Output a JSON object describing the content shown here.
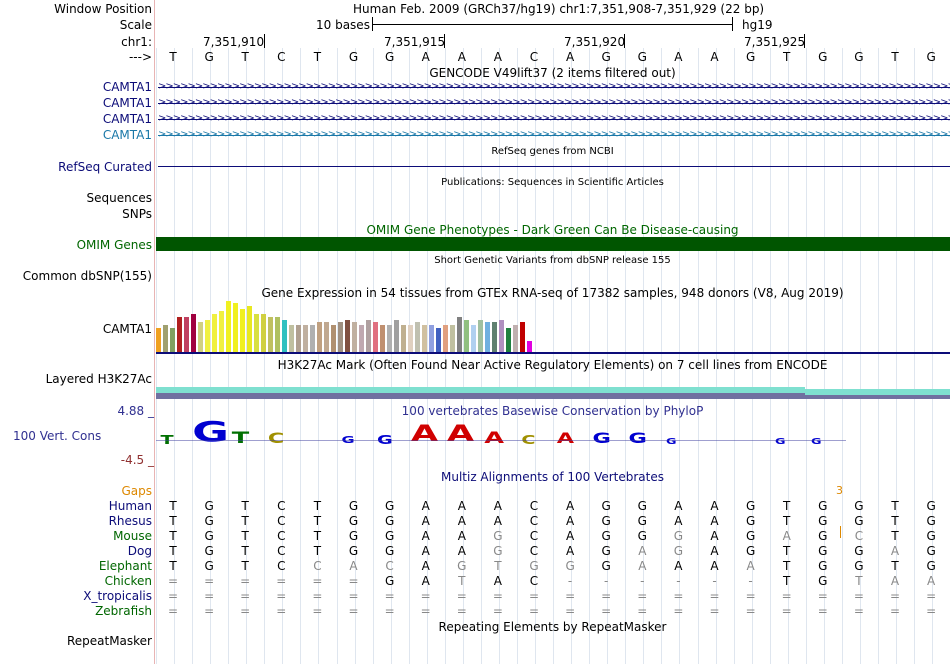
{
  "labels": {
    "window_position": "Window Position",
    "scale": "Scale",
    "chr": "chr1:",
    "arrow": "--->",
    "camta1": "CAMTA1",
    "refseq": "RefSeq Curated",
    "sequences": "Sequences",
    "snps": "SNPs",
    "omim": "OMIM Genes",
    "common_snp": "Common dbSNP(155)",
    "gtex_gene": "CAMTA1",
    "h3k27": "Layered H3K27Ac",
    "cons_top": "4.88 _",
    "cons_name": "100 Vert. Cons",
    "cons_bottom": "-4.5 _",
    "gaps": "Gaps",
    "repeat": "RepeatMasker"
  },
  "header": {
    "position": "Human Feb. 2009 (GRCh37/hg19)   chr1:7,351,908-7,351,929 (22 bp)",
    "scale_text": "10 bases",
    "assembly": "hg19",
    "ticks": [
      "7,351,910",
      "7,351,915",
      "7,351,920",
      "7,351,925"
    ]
  },
  "reference_bases": [
    "T",
    "G",
    "T",
    "C",
    "T",
    "G",
    "G",
    "A",
    "A",
    "A",
    "C",
    "A",
    "G",
    "G",
    "A",
    "A",
    "G",
    "T",
    "G",
    "G",
    "T",
    "G"
  ],
  "tracks": {
    "gencode": "GENCODE V49lift37 (2 items filtered out)",
    "refseq": "RefSeq genes from NCBI",
    "publications": "Publications: Sequences in Scientific Articles",
    "omim": "OMIM Gene Phenotypes - Dark Green Can Be Disease-causing",
    "dbsnp": "Short Genetic Variants from dbSNP release 155",
    "gtex": "Gene Expression in 54 tissues from GTEx RNA-seq of 17382 samples, 948 donors (V8, Aug 2019)",
    "h3k27": "H3K27Ac Mark (Often Found Near Active Regulatory Elements) on 7 cell lines from ENCODE",
    "phylop": "100 vertebrates Basewise Conservation by PhyloP",
    "multiz": "Multiz Alignments of 100 Vertebrates",
    "repeat": "Repeating Elements by RepeatMasker"
  },
  "colors": {
    "gene": "#0c0c78",
    "omim": "#005500",
    "omim_label": "#006600",
    "gaps": "#dd8800",
    "separator": "#e8b4b4",
    "h3k27_top": "#7fe0d0",
    "h3k27_bottom": "#7070a0"
  },
  "gaps_value": "3",
  "species": [
    {
      "name": "Human",
      "color": "#0c0c78",
      "bases": [
        "T",
        "G",
        "T",
        "C",
        "T",
        "G",
        "G",
        "A",
        "A",
        "A",
        "C",
        "A",
        "G",
        "G",
        "A",
        "A",
        "G",
        "T",
        "G",
        "G",
        "T",
        "G"
      ]
    },
    {
      "name": "Rhesus",
      "color": "#0c0c78",
      "bases": [
        "T",
        "G",
        "T",
        "C",
        "T",
        "G",
        "G",
        "A",
        "A",
        "A",
        "C",
        "A",
        "G",
        "G",
        "A",
        "A",
        "G",
        "T",
        "G",
        "G",
        "T",
        "G"
      ]
    },
    {
      "name": "Mouse",
      "color": "#006600",
      "bases": [
        "T",
        "G",
        "T",
        "C",
        "T",
        "G",
        "G",
        "A",
        "A",
        "G",
        "C",
        "A",
        "G",
        "G",
        "G",
        "A",
        "G",
        "A",
        "G",
        "C",
        "T",
        "G"
      ]
    },
    {
      "name": "Dog",
      "color": "#0c0c78",
      "bases": [
        "T",
        "G",
        "T",
        "C",
        "T",
        "G",
        "G",
        "A",
        "A",
        "G",
        "C",
        "A",
        "G",
        "A",
        "G",
        "A",
        "G",
        "T",
        "G",
        "G",
        "A",
        "G"
      ]
    },
    {
      "name": "Elephant",
      "color": "#006600",
      "bases": [
        "T",
        "G",
        "T",
        "C",
        "C",
        "A",
        "C",
        "A",
        "G",
        "T",
        "G",
        "G",
        "G",
        "A",
        "A",
        "A",
        "A",
        "T",
        "G",
        "G",
        "T",
        "G"
      ]
    },
    {
      "name": "Chicken",
      "color": "#006600",
      "bases": [
        "=",
        "=",
        "=",
        "=",
        "=",
        "=",
        "G",
        "A",
        "T",
        "A",
        "C",
        "-",
        "-",
        "-",
        "-",
        "-",
        "-",
        "T",
        "G",
        "T",
        "A",
        "A"
      ]
    },
    {
      "name": "X_tropicalis",
      "color": "#0c0c78",
      "bases": [
        "=",
        "=",
        "=",
        "=",
        "=",
        "=",
        "=",
        "=",
        "=",
        "=",
        "=",
        "=",
        "=",
        "=",
        "=",
        "=",
        "=",
        "=",
        "=",
        "=",
        "=",
        "="
      ]
    },
    {
      "name": "Zebrafish",
      "color": "#006600",
      "bases": [
        "=",
        "=",
        "=",
        "=",
        "=",
        "=",
        "=",
        "=",
        "=",
        "=",
        "=",
        "=",
        "=",
        "=",
        "=",
        "=",
        "=",
        "=",
        "=",
        "=",
        "=",
        "="
      ]
    }
  ],
  "gtex_values": [
    0.45,
    0.5,
    0.45,
    0.65,
    0.65,
    0.7,
    0.55,
    0.6,
    0.7,
    0.75,
    0.95,
    0.9,
    0.8,
    0.85,
    0.7,
    0.7,
    0.65,
    0.65,
    0.6,
    0.5,
    0.5,
    0.5,
    0.5,
    0.55,
    0.55,
    0.5,
    0.55,
    0.6,
    0.55,
    0.5,
    0.6,
    0.55,
    0.5,
    0.5,
    0.6,
    0.5,
    0.5,
    0.55,
    0.5,
    0.5,
    0.45,
    0.5,
    0.5,
    0.65,
    0.6,
    0.5,
    0.6,
    0.55,
    0.55,
    0.6,
    0.45,
    0.5,
    0.55,
    0.2
  ],
  "gtex_colors": [
    "#f0a020",
    "#a0a070",
    "#80a060",
    "#b02020",
    "#c04060",
    "#a00040",
    "#d0d080",
    "#f0f040",
    "#f0f040",
    "#f0f040",
    "#f0f020",
    "#f0f020",
    "#f0f020",
    "#e8e820",
    "#d8e040",
    "#d0d040",
    "#c0c060",
    "#b0c060",
    "#30c0c0",
    "#c0c0a0",
    "#b0a090",
    "#c0b0a0",
    "#b0b0b0",
    "#c0a080",
    "#c0a890",
    "#b09070",
    "#a09080",
    "#805040",
    "#c0b0a0",
    "#c0a8b0",
    "#b0a0a0",
    "#e07080",
    "#c09070",
    "#b0b0b0",
    "#a0a0a0",
    "#c0b090",
    "#e0d0c0",
    "#c0c0b0",
    "#d0c0a0",
    "#90a0e0",
    "#4060c0",
    "#e0a080",
    "#c0c0a0",
    "#808080",
    "#90c080",
    "#b0d0f0",
    "#a0c0a0",
    "#70b0e0",
    "#608070",
    "#b090c0",
    "#208040",
    "#c0b0b0",
    "#c00000",
    "#e000e0"
  ],
  "logo": [
    {
      "ch": "T",
      "color": "#007000",
      "size": 8
    },
    {
      "ch": "G",
      "color": "#0000d0",
      "size": 24
    },
    {
      "ch": "T",
      "color": "#007000",
      "size": 12
    },
    {
      "ch": "C",
      "color": "#a09000",
      "size": 10
    },
    {
      "ch": "G",
      "color": "#0000d0",
      "size": 6
    },
    {
      "ch": "G",
      "color": "#0000d0",
      "size": 8
    },
    {
      "ch": "A",
      "color": "#d00000",
      "size": 18
    },
    {
      "ch": "A",
      "color": "#d00000",
      "size": 18
    },
    {
      "ch": "A",
      "color": "#d00000",
      "size": 12
    },
    {
      "ch": "C",
      "color": "#a09000",
      "size": 8
    },
    {
      "ch": "A",
      "color": "#d00000",
      "size": 10
    },
    {
      "ch": "G",
      "color": "#0000d0",
      "size": 10
    },
    {
      "ch": "G",
      "color": "#0000d0",
      "size": 10
    },
    {
      "ch": "G",
      "color": "#0000d0",
      "size": 4
    },
    {
      "ch": "G",
      "color": "#0000d0",
      "size": 4
    },
    {
      "ch": "G",
      "color": "#0000d0",
      "size": 4
    }
  ]
}
